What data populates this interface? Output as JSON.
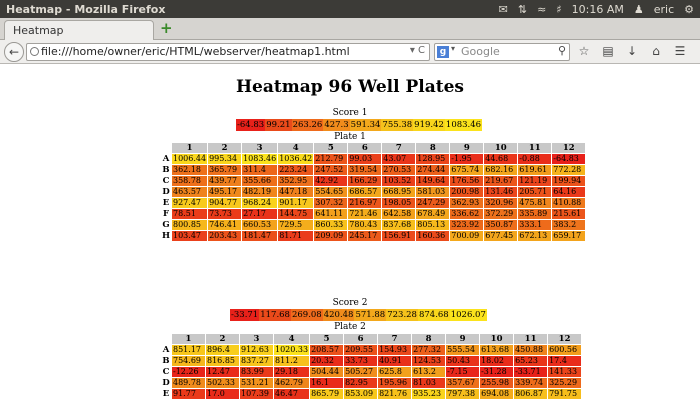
{
  "os": {
    "window_title": "Heatmap - Mozilla Firefox",
    "clock": "10:16 AM",
    "user": "eric"
  },
  "browser": {
    "tab_title": "Heatmap",
    "url": "file:///home/owner/eric/HTML/webserver/heatmap1.html",
    "search_placeholder": "Google"
  },
  "page": {
    "title": "Heatmap 96 Well Plates"
  },
  "columns": [
    "1",
    "2",
    "3",
    "4",
    "5",
    "6",
    "7",
    "8",
    "9",
    "10",
    "11",
    "12"
  ],
  "rows": [
    "A",
    "B",
    "C",
    "D",
    "E",
    "F",
    "G",
    "H"
  ],
  "plates": [
    {
      "score_label": "Score 1",
      "plate_label": "Plate 1",
      "score_values": [
        "-64.83",
        "99.21",
        "263.26",
        "427.3",
        "591.34",
        "755.38",
        "919.42",
        "1083.46"
      ],
      "score_colors": [
        "#e8211a",
        "#e94a1a",
        "#ee6a1c",
        "#f08c1c",
        "#f3a81c",
        "#f5c21c",
        "#f8d61c",
        "#fbe31c"
      ],
      "cells": [
        [
          "1006.44",
          "995.34",
          "1083.46",
          "1036.42",
          "212.79",
          "99.03",
          "43.07",
          "128.95",
          "-1.95",
          "44.68",
          "-0.88",
          "-64.83"
        ],
        [
          "362.18",
          "365.79",
          "311.4",
          "223.24",
          "247.52",
          "319.54",
          "270.53",
          "274.44",
          "675.74",
          "682.16",
          "619.61",
          "772.28"
        ],
        [
          "358.78",
          "439.77",
          "355.66",
          "352.95",
          "42.92",
          "166.29",
          "103.52",
          "149.64",
          "176.56",
          "219.67",
          "121.19",
          "199.94"
        ],
        [
          "463.57",
          "495.17",
          "482.19",
          "447.18",
          "554.65",
          "686.57",
          "668.95",
          "581.03",
          "200.98",
          "131.46",
          "205.71",
          "64.16"
        ],
        [
          "927.47",
          "904.77",
          "968.24",
          "901.17",
          "307.32",
          "216.97",
          "198.05",
          "247.29",
          "362.93",
          "320.96",
          "475.81",
          "410.88"
        ],
        [
          "78.51",
          "73.73",
          "27.17",
          "144.75",
          "641.11",
          "721.46",
          "642.58",
          "678.49",
          "336.62",
          "372.29",
          "335.89",
          "215.61"
        ],
        [
          "800.85",
          "746.41",
          "660.53",
          "729.5",
          "860.33",
          "780.43",
          "837.68",
          "805.13",
          "323.92",
          "350.87",
          "333.1",
          "383.2"
        ],
        [
          "103.47",
          "203.43",
          "181.47",
          "81.71",
          "209.09",
          "245.17",
          "156.91",
          "160.36",
          "700.09",
          "677.45",
          "672.13",
          "659.17"
        ]
      ]
    },
    {
      "score_label": "Score 2",
      "plate_label": "Plate 2",
      "score_values": [
        "-33.71",
        "117.68",
        "269.08",
        "420.48",
        "571.88",
        "723.28",
        "874.68",
        "1026.07"
      ],
      "score_colors": [
        "#e8211a",
        "#e94a1a",
        "#ee6a1c",
        "#f08c1c",
        "#f3a81c",
        "#f5c21c",
        "#f8d61c",
        "#fbe31c"
      ],
      "cells": [
        [
          "851.17",
          "896.4",
          "912.63",
          "1020.33",
          "208.57",
          "209.55",
          "154.93",
          "277.32",
          "555.54",
          "613.68",
          "450.88",
          "600.56"
        ],
        [
          "754.69",
          "816.85",
          "837.27",
          "811.2",
          "20.32",
          "33.73",
          "40.91",
          "124.53",
          "50.43",
          "18.02",
          "65.23",
          "17.4"
        ],
        [
          "-12.26",
          "12.47",
          "83.99",
          "29.18",
          "504.44",
          "505.27",
          "625.8",
          "613.2",
          "-7.15",
          "-31.28",
          "-33.71",
          "141.33"
        ],
        [
          "489.78",
          "502.33",
          "531.21",
          "462.79",
          "16.1",
          "82.95",
          "195.96",
          "81.03",
          "357.67",
          "255.98",
          "339.74",
          "325.29"
        ],
        [
          "91.77",
          "17.0",
          "107.39",
          "46.47",
          "865.79",
          "853.09",
          "821.76",
          "935.23",
          "797.38",
          "694.08",
          "806.87",
          "791.75"
        ]
      ]
    }
  ],
  "colors": {
    "heat_low": "#e8211a",
    "heat_high": "#fbe31c",
    "header_gray": "#c8c8c8"
  },
  "icons": [
    "mail-icon",
    "network-icon",
    "wifi-icon",
    "volume-icon",
    "user-icon",
    "gear-icon",
    "back-icon",
    "globe-icon",
    "reload-icon",
    "search-icon",
    "star-icon",
    "bookmarks-icon",
    "download-icon",
    "home-icon",
    "menu-icon",
    "new-tab-icon"
  ]
}
